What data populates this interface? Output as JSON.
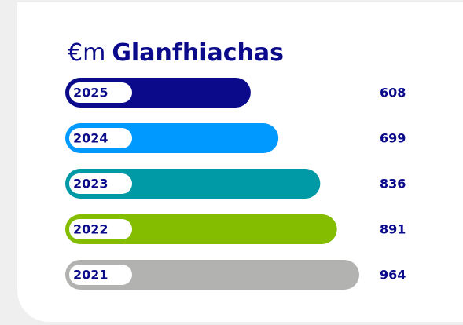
{
  "chart_data": {
    "type": "bar",
    "unit": "€m",
    "title": "Glanfhiachas",
    "categories": [
      "2025",
      "2024",
      "2023",
      "2022",
      "2021"
    ],
    "values": [
      608,
      699,
      836,
      891,
      964
    ],
    "colors": [
      "#0a0a8a",
      "#0099ff",
      "#0099a6",
      "#84bd00",
      "#b2b3b1"
    ]
  }
}
